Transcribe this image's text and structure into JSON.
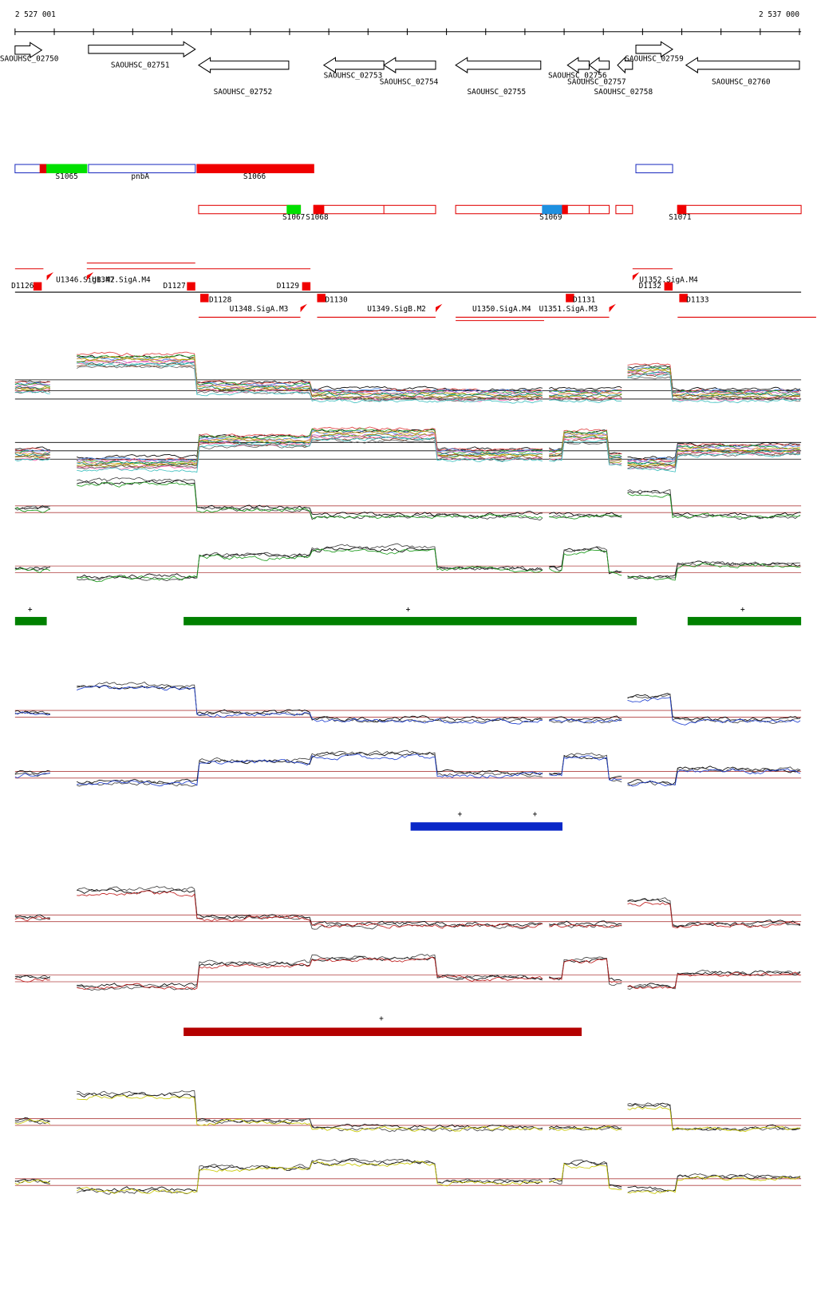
{
  "axis": {
    "start": "2 527 001",
    "end": "2 537 000"
  },
  "genes": [
    "SAOUHSC_02750",
    "SAOUHSC_02751",
    "SAOUHSC_02752",
    "SAOUHSC_02753",
    "SAOUHSC_02754",
    "SAOUHSC_02755",
    "SAOUHSC_02756",
    "SAOUHSC_02757",
    "SAOUHSC_02758",
    "SAOUHSC_02759",
    "SAOUHSC_02760"
  ],
  "features_row1": [
    "S1065",
    "pnbA",
    "S1066"
  ],
  "features_row2": [
    "S1067",
    "S1068",
    "S1069",
    "S1071"
  ],
  "downstream": [
    "D1126",
    "D1127",
    "D1128",
    "D1129",
    "D1130",
    "D1131",
    "D1132",
    "D1133"
  ],
  "upstream": [
    "U1346.SigB.M2",
    "U1347.SigA.M4",
    "U1348.SigA.M3",
    "U1349.SigB.M2",
    "U1350.SigA.M4",
    "U1351.SigA.M3",
    "U1352.SigA.M4"
  ],
  "markers": {
    "green": [
      "+",
      "+",
      "+"
    ],
    "blue": [
      "+",
      "+"
    ],
    "red": [
      "+"
    ]
  }
}
